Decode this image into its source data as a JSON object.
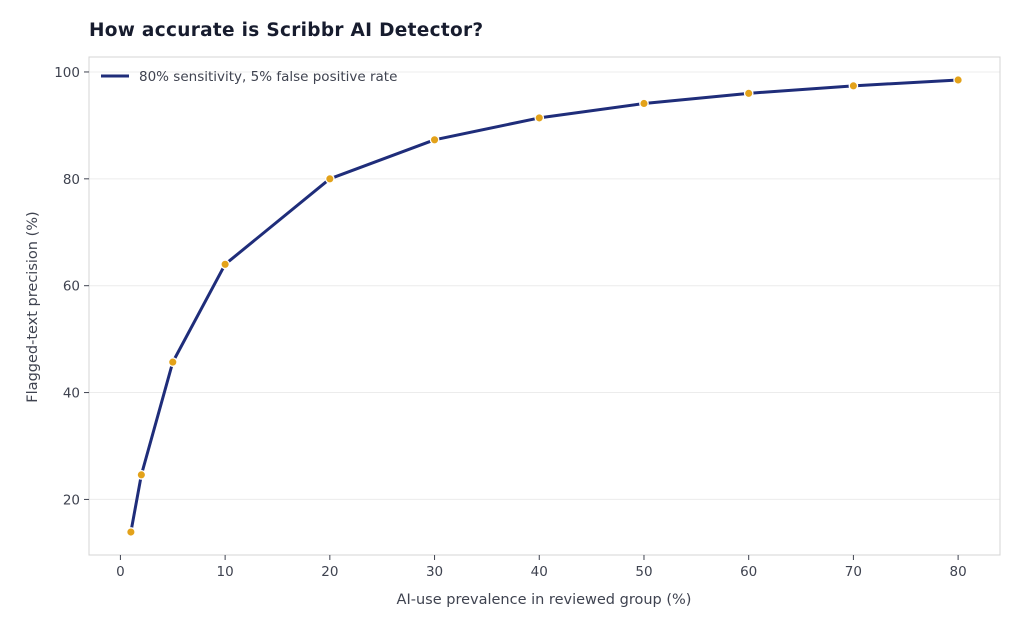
{
  "chart_data": {
    "type": "line",
    "title": "How accurate is Scribbr AI Detector?",
    "xlabel": "AI-use prevalence in reviewed group (%)",
    "ylabel": "Flagged-text precision (%)",
    "xlim": [
      -3,
      84
    ],
    "ylim": [
      9.6,
      102.8
    ],
    "xticks": [
      0,
      10,
      20,
      30,
      40,
      50,
      60,
      70,
      80
    ],
    "yticks": [
      20,
      40,
      60,
      80,
      100
    ],
    "grid": "horizontal",
    "legend_position": "top-left",
    "series": [
      {
        "name": "80% sensitivity, 5% false positive rate",
        "color": "#1f2d7a",
        "marker_color": "#e3a21a",
        "x": [
          1,
          2,
          5,
          10,
          20,
          30,
          40,
          50,
          60,
          70,
          80
        ],
        "y": [
          13.9,
          24.6,
          45.7,
          64.0,
          80.0,
          87.3,
          91.4,
          94.1,
          96.0,
          97.4,
          98.5
        ]
      }
    ]
  }
}
